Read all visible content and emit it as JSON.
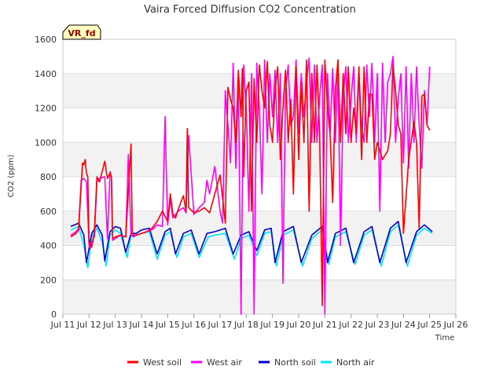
{
  "chart_data": {
    "type": "line",
    "title": "Vaira Forced Diffusion CO2 Concentration",
    "xlabel": "Time",
    "ylabel": "CO2 (ppm)",
    "badge": "VR_fd",
    "ylim": [
      0,
      1600
    ],
    "xlim": [
      "Jul 11",
      "Jul 26"
    ],
    "y_ticks": [
      "0",
      "200",
      "400",
      "600",
      "800",
      "1000",
      "1200",
      "1400",
      "1600"
    ],
    "x_ticks": [
      "Jul 11",
      "Jul 12",
      "Jul 13",
      "Jul 14",
      "Jul 15",
      "Jul 16",
      "Jul 17",
      "Jul 18",
      "Jul 19",
      "Jul 20",
      "Jul 21",
      "Jul 22",
      "Jul 23",
      "Jul 24",
      "Jul 25",
      "Jul 26"
    ],
    "grid": "horizontal bands",
    "legend_position": "bottom",
    "x_unit": "day of July",
    "series": [
      {
        "name": "West soil",
        "color": "#ff0000",
        "x": [
          11.3,
          11.5,
          11.6,
          11.75,
          11.8,
          11.85,
          11.9,
          11.95,
          12.0,
          12.1,
          12.2,
          12.3,
          12.4,
          12.6,
          12.7,
          12.8,
          12.85,
          12.9,
          13.0,
          13.2,
          13.4,
          13.6,
          13.65,
          13.7,
          13.8,
          14.0,
          14.2,
          14.4,
          14.6,
          14.8,
          15.0,
          15.1,
          15.2,
          15.3,
          15.4,
          15.6,
          15.7,
          15.75,
          15.8,
          16.0,
          16.2,
          16.4,
          16.6,
          16.8,
          17.0,
          17.2,
          17.3,
          17.4,
          17.5,
          17.6,
          17.7,
          17.8,
          17.85,
          17.9,
          18.0,
          18.1,
          18.2,
          18.3,
          18.4,
          18.5,
          18.6,
          18.7,
          18.8,
          18.9,
          19.0,
          19.1,
          19.2,
          19.3,
          19.4,
          19.5,
          19.6,
          19.7,
          19.8,
          19.9,
          20.0,
          20.1,
          20.2,
          20.3,
          20.4,
          20.5,
          20.6,
          20.7,
          20.8,
          20.9,
          21.0,
          21.1,
          21.2,
          21.3,
          21.4,
          21.5,
          21.6,
          21.7,
          21.8,
          21.9,
          22.0,
          22.1,
          22.2,
          22.3,
          22.4,
          22.5,
          22.6,
          22.7,
          22.8,
          22.9,
          23.0,
          23.2,
          23.4,
          23.5,
          23.6,
          23.7,
          23.8,
          23.9,
          24.0,
          24.2,
          24.4,
          24.5,
          24.6,
          24.7,
          24.8,
          24.9,
          25.0
        ],
        "y": [
          450,
          470,
          490,
          880,
          870,
          900,
          820,
          800,
          420,
          390,
          470,
          800,
          770,
          890,
          790,
          820,
          800,
          440,
          450,
          460,
          450,
          990,
          470,
          460,
          460,
          470,
          480,
          500,
          540,
          600,
          540,
          700,
          580,
          560,
          610,
          690,
          600,
          1080,
          620,
          590,
          600,
          620,
          590,
          700,
          810,
          530,
          1320,
          1250,
          1200,
          1000,
          1420,
          1150,
          1430,
          800,
          1300,
          1350,
          600,
          1370,
          1000,
          1450,
          1300,
          1200,
          1470,
          1100,
          1000,
          1300,
          1440,
          900,
          1200,
          1420,
          1000,
          1250,
          700,
          1440,
          900,
          1350,
          1000,
          1480,
          600,
          1400,
          1000,
          1450,
          1050,
          50,
          1480,
          1200,
          1050,
          650,
          1300,
          1480,
          1000,
          1400,
          1050,
          1440,
          1000,
          1200,
          1050,
          1440,
          900,
          1440,
          1000,
          1280,
          1280,
          900,
          1000,
          900,
          950,
          1050,
          1450,
          1300,
          1100,
          1050,
          470,
          900,
          1120,
          1000,
          500,
          1270,
          1280,
          1100,
          1070
        ]
      },
      {
        "name": "West air",
        "color": "#ff00ff",
        "x": [
          11.3,
          11.5,
          11.6,
          11.7,
          11.8,
          11.9,
          12.0,
          12.05,
          12.1,
          12.2,
          12.3,
          12.4,
          12.6,
          12.7,
          12.8,
          12.85,
          12.9,
          13.0,
          13.2,
          13.4,
          13.5,
          13.6,
          13.7,
          13.8,
          14.0,
          14.2,
          14.4,
          14.6,
          14.8,
          14.9,
          15.0,
          15.1,
          15.2,
          15.4,
          15.6,
          15.7,
          15.8,
          16.0,
          16.2,
          16.4,
          16.5,
          16.6,
          16.8,
          17.0,
          17.1,
          17.2,
          17.3,
          17.4,
          17.5,
          17.6,
          17.7,
          17.8,
          17.9,
          18.0,
          18.1,
          18.2,
          18.3,
          18.4,
          18.5,
          18.6,
          18.7,
          18.8,
          18.9,
          19.0,
          19.1,
          19.2,
          19.3,
          19.4,
          19.5,
          19.6,
          19.7,
          19.8,
          19.9,
          20.0,
          20.1,
          20.2,
          20.3,
          20.4,
          20.5,
          20.6,
          20.7,
          20.8,
          20.9,
          21.0,
          21.1,
          21.2,
          21.3,
          21.4,
          21.5,
          21.6,
          21.7,
          21.8,
          21.9,
          22.0,
          22.1,
          22.2,
          22.3,
          22.4,
          22.5,
          22.6,
          22.7,
          22.8,
          22.9,
          23.0,
          23.1,
          23.2,
          23.3,
          23.4,
          23.5,
          23.6,
          23.7,
          23.8,
          23.9,
          24.0,
          24.1,
          24.2,
          24.3,
          24.4,
          24.5,
          24.6,
          24.7,
          24.8,
          24.9,
          25.0
        ],
        "y": [
          460,
          480,
          500,
          780,
          790,
          770,
          400,
          380,
          420,
          450,
          770,
          790,
          800,
          440,
          830,
          800,
          430,
          440,
          460,
          450,
          930,
          460,
          450,
          460,
          470,
          480,
          490,
          520,
          510,
          1150,
          520,
          670,
          560,
          600,
          620,
          590,
          1040,
          580,
          620,
          650,
          780,
          700,
          860,
          600,
          530,
          1300,
          1100,
          880,
          1460,
          850,
          1350,
          0,
          1450,
          1200,
          600,
          1400,
          0,
          1460,
          1200,
          700,
          1480,
          1000,
          1400,
          1150,
          1420,
          1000,
          1400,
          180,
          1300,
          1450,
          1100,
          1150,
          1480,
          1050,
          1400,
          1150,
          1350,
          1490,
          1000,
          1450,
          1000,
          1260,
          1450,
          0,
          1400,
          1050,
          1430,
          1000,
          1440,
          400,
          1270,
          1440,
          1000,
          1250,
          1440,
          1000,
          1400,
          1100,
          1000,
          1450,
          1150,
          1460,
          1000,
          1400,
          600,
          1460,
          1000,
          1350,
          1400,
          1500,
          1000,
          1250,
          1400,
          880,
          1440,
          850,
          1400,
          1000,
          1440,
          1100,
          850,
          1300,
          1100,
          1440
        ]
      },
      {
        "name": "North soil",
        "color": "#0000cc",
        "x": [
          11.3,
          11.6,
          11.8,
          11.9,
          12.1,
          12.3,
          12.5,
          12.6,
          12.8,
          13.0,
          13.2,
          13.4,
          13.6,
          13.8,
          14.0,
          14.3,
          14.6,
          14.9,
          15.1,
          15.3,
          15.6,
          15.9,
          16.2,
          16.5,
          16.8,
          17.2,
          17.5,
          17.8,
          18.1,
          18.4,
          18.7,
          18.95,
          19.1,
          19.4,
          19.8,
          20.1,
          20.5,
          20.9,
          21.1,
          21.4,
          21.8,
          22.1,
          22.5,
          22.8,
          23.1,
          23.5,
          23.8,
          24.1,
          24.5,
          24.8,
          25.1
        ],
        "y": [
          510,
          530,
          460,
          300,
          470,
          520,
          460,
          310,
          480,
          510,
          500,
          360,
          470,
          470,
          490,
          500,
          350,
          480,
          500,
          350,
          470,
          490,
          350,
          470,
          480,
          500,
          350,
          460,
          480,
          370,
          490,
          500,
          300,
          480,
          510,
          300,
          460,
          510,
          300,
          470,
          500,
          300,
          480,
          510,
          300,
          500,
          540,
          300,
          480,
          520,
          480
        ]
      },
      {
        "name": "North air",
        "color": "#00e5ff",
        "x": [
          11.3,
          11.6,
          11.8,
          11.95,
          12.1,
          12.3,
          12.5,
          12.65,
          12.8,
          13.0,
          13.2,
          13.45,
          13.6,
          13.8,
          14.0,
          14.3,
          14.6,
          14.9,
          15.1,
          15.35,
          15.6,
          15.9,
          16.2,
          16.55,
          16.8,
          17.2,
          17.55,
          17.8,
          18.1,
          18.4,
          18.7,
          18.95,
          19.15,
          19.4,
          19.8,
          20.15,
          20.5,
          20.9,
          21.15,
          21.4,
          21.8,
          22.15,
          22.5,
          22.8,
          23.15,
          23.5,
          23.8,
          24.15,
          24.5,
          24.8,
          25.1
        ],
        "y": [
          490,
          510,
          400,
          270,
          450,
          500,
          420,
          280,
          460,
          490,
          470,
          330,
          460,
          460,
          470,
          480,
          320,
          460,
          480,
          330,
          450,
          470,
          330,
          450,
          460,
          470,
          320,
          440,
          460,
          340,
          470,
          480,
          280,
          460,
          490,
          280,
          440,
          490,
          290,
          450,
          480,
          290,
          460,
          490,
          280,
          480,
          520,
          280,
          460,
          500,
          470
        ]
      }
    ]
  }
}
